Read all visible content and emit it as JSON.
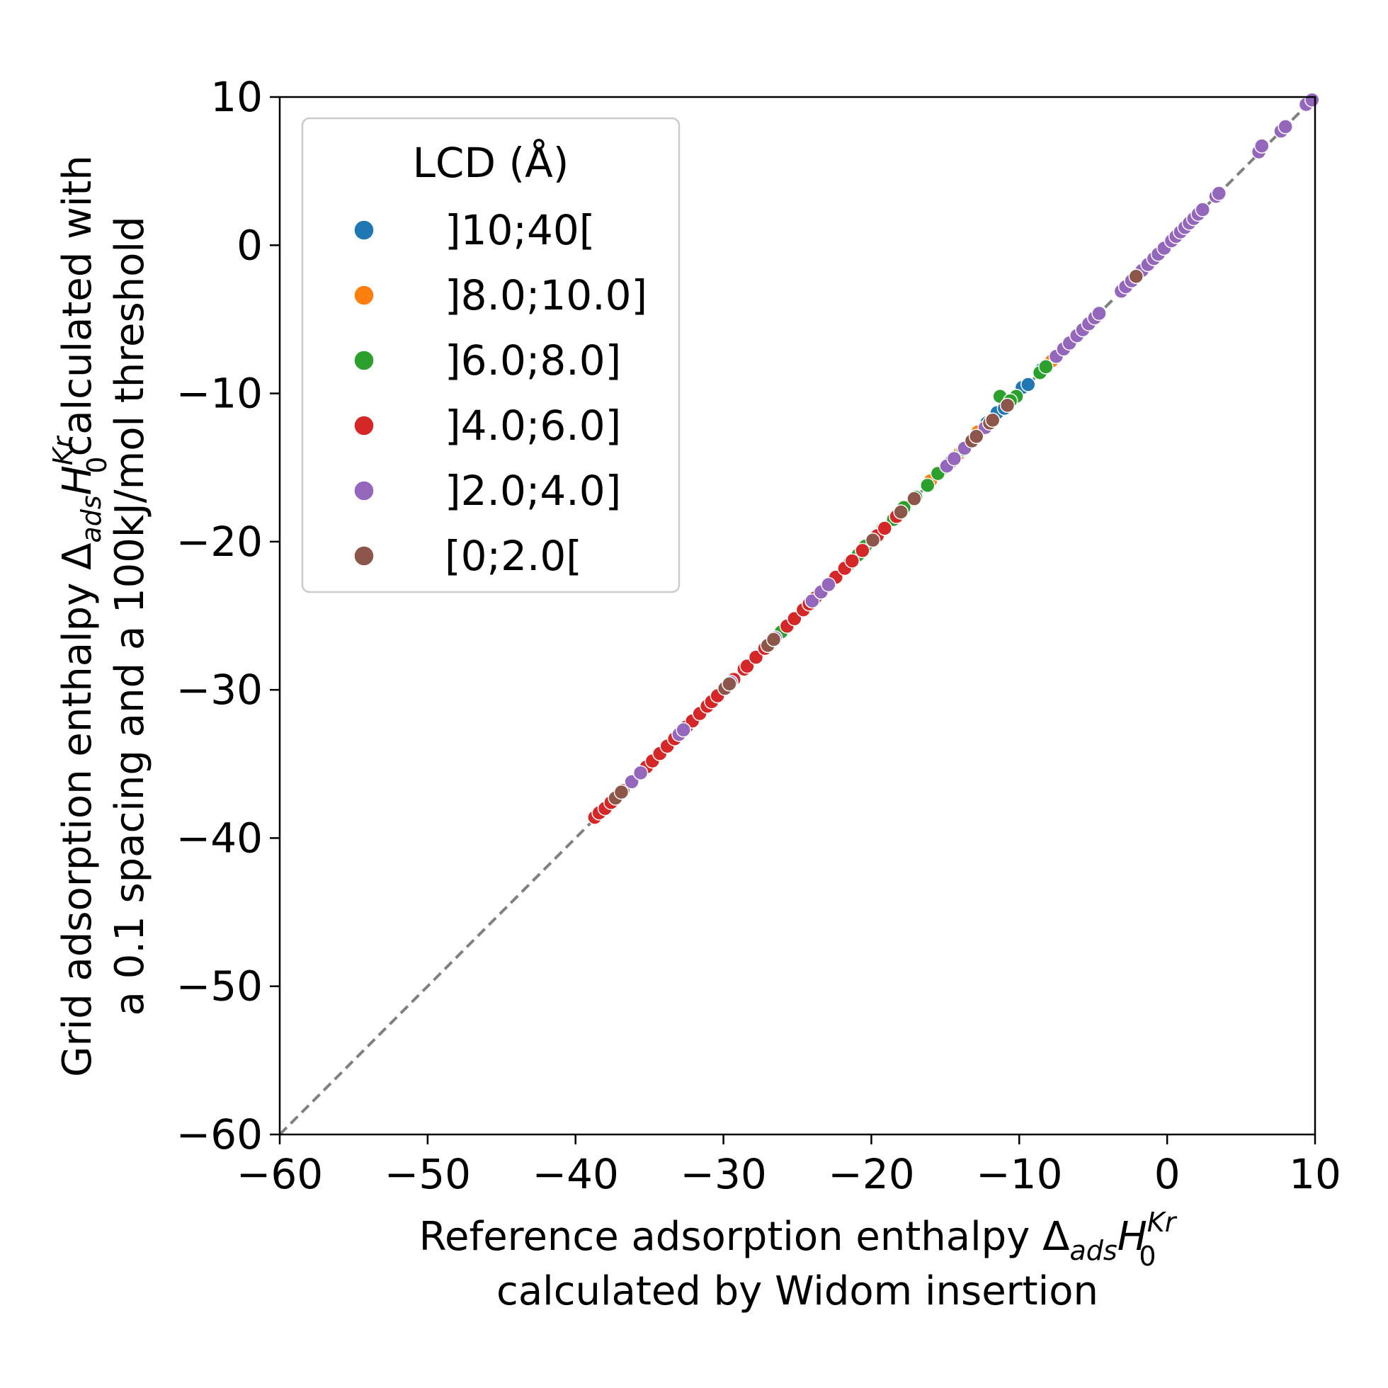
{
  "chart_data": {
    "type": "scatter",
    "xlabel": {
      "prefix": "Reference adsorption enthalpy Δ",
      "sub": "ads",
      "symbol": "H",
      "sup": "Kr",
      "sub2": "0",
      "line2": "calculated by Widom insertion"
    },
    "ylabel": {
      "prefix": "Grid adsorption enthalpy Δ",
      "sub": "ads",
      "symbol": "H",
      "sup": "Kr",
      "sub2": "0",
      "suffix": "calculated with",
      "line2": "a 0.1 spacing and a 100kJ/mol threshold"
    },
    "xlim": [
      -60,
      10
    ],
    "ylim": [
      -60,
      10
    ],
    "xticks": [
      "−60",
      "−50",
      "−40",
      "−30",
      "−20",
      "−10",
      "0",
      "10"
    ],
    "yticks": [
      "−60",
      "−50",
      "−40",
      "−30",
      "−20",
      "−10",
      "0",
      "10"
    ],
    "xtick_values": [
      -60,
      -50,
      -40,
      -30,
      -20,
      -10,
      0,
      10
    ],
    "ytick_values": [
      -60,
      -50,
      -40,
      -30,
      -20,
      -10,
      0,
      10
    ],
    "reference_line": {
      "style": "dashed",
      "color": "#808080",
      "x": [
        -60,
        10
      ],
      "y": [
        -60,
        10
      ]
    },
    "grid": false,
    "legend": {
      "title": "LCD (Å)",
      "placement": "top-left",
      "entries": [
        "]10;40[",
        "]8.0;10.0]",
        "]6.0;8.0]",
        "]4.0;6.0]",
        "]2.0;4.0]",
        "[0;2.0["
      ]
    },
    "series": [
      {
        "name": "]10;40[",
        "color": "#1f77b4",
        "points": [
          [
            -11.5,
            -11.3
          ],
          [
            -11.0,
            -11.0
          ],
          [
            -9.8,
            -9.6
          ],
          [
            -9.4,
            -9.4
          ],
          [
            -8.5,
            -8.4
          ],
          [
            -12.2,
            -12.0
          ]
        ]
      },
      {
        "name": "]8.0;10.0]",
        "color": "#ff7f0e",
        "points": [
          [
            -14.3,
            -14.3
          ],
          [
            -14.0,
            -14.0
          ],
          [
            -8.0,
            -8.0
          ],
          [
            -7.8,
            -7.8
          ],
          [
            -12.8,
            -12.6
          ],
          [
            -16.0,
            -15.9
          ]
        ]
      },
      {
        "name": "]6.0;8.0]",
        "color": "#2ca02c",
        "points": [
          [
            -11.3,
            -10.2
          ],
          [
            -10.2,
            -10.2
          ],
          [
            -10.6,
            -10.5
          ],
          [
            -8.6,
            -8.6
          ],
          [
            -8.2,
            -8.2
          ],
          [
            -15.0,
            -15.0
          ],
          [
            -15.5,
            -15.4
          ],
          [
            -16.2,
            -16.2
          ],
          [
            -17.0,
            -17.0
          ],
          [
            -17.8,
            -17.7
          ],
          [
            -18.5,
            -18.5
          ],
          [
            -19.2,
            -19.1
          ],
          [
            -19.8,
            -19.8
          ],
          [
            -20.4,
            -20.3
          ],
          [
            -20.9,
            -20.9
          ],
          [
            -21.5,
            -21.5
          ],
          [
            -25.8,
            -25.8
          ],
          [
            -26.1,
            -26.1
          ],
          [
            -13.8,
            -13.8
          ],
          [
            -14.6,
            -14.6
          ]
        ]
      },
      {
        "name": "]4.0;6.0]",
        "color": "#d62728",
        "points": [
          [
            -38.7,
            -38.6
          ],
          [
            -38.4,
            -38.3
          ],
          [
            -38.0,
            -38.0
          ],
          [
            -37.6,
            -37.6
          ],
          [
            -37.1,
            -37.1
          ],
          [
            -36.8,
            -36.8
          ],
          [
            -35.2,
            -35.2
          ],
          [
            -34.8,
            -34.8
          ],
          [
            -34.3,
            -34.3
          ],
          [
            -33.8,
            -33.8
          ],
          [
            -33.3,
            -33.3
          ],
          [
            -32.5,
            -32.5
          ],
          [
            -32.1,
            -32.1
          ],
          [
            -31.6,
            -31.6
          ],
          [
            -31.1,
            -31.1
          ],
          [
            -30.8,
            -30.8
          ],
          [
            -30.4,
            -30.4
          ],
          [
            -29.8,
            -29.8
          ],
          [
            -29.3,
            -29.3
          ],
          [
            -28.6,
            -28.6
          ],
          [
            -28.4,
            -28.4
          ],
          [
            -27.8,
            -27.8
          ],
          [
            -27.2,
            -27.2
          ],
          [
            -26.8,
            -26.8
          ],
          [
            -25.7,
            -25.7
          ],
          [
            -25.2,
            -25.2
          ],
          [
            -24.6,
            -24.6
          ],
          [
            -24.2,
            -24.2
          ],
          [
            -23.8,
            -23.8
          ],
          [
            -23.3,
            -23.3
          ],
          [
            -22.8,
            -22.8
          ],
          [
            -22.4,
            -22.4
          ],
          [
            -21.8,
            -21.8
          ],
          [
            -21.3,
            -21.3
          ],
          [
            -20.6,
            -20.6
          ],
          [
            -19.6,
            -19.6
          ],
          [
            -19.1,
            -19.1
          ],
          [
            -18.3,
            -18.3
          ]
        ]
      },
      {
        "name": "]2.0;4.0]",
        "color": "#9467bd",
        "points": [
          [
            -36.2,
            -36.2
          ],
          [
            -35.6,
            -35.6
          ],
          [
            -33.0,
            -33.0
          ],
          [
            -32.7,
            -32.7
          ],
          [
            -29.5,
            -29.5
          ],
          [
            -26.5,
            -26.5
          ],
          [
            -24.0,
            -24.0
          ],
          [
            -23.4,
            -23.4
          ],
          [
            -22.9,
            -22.9
          ],
          [
            -14.9,
            -14.9
          ],
          [
            -14.4,
            -14.4
          ],
          [
            -13.7,
            -13.7
          ],
          [
            -12.3,
            -12.3
          ],
          [
            -7.5,
            -7.5
          ],
          [
            -7.0,
            -7.0
          ],
          [
            -6.6,
            -6.6
          ],
          [
            -6.1,
            -6.1
          ],
          [
            -5.7,
            -5.7
          ],
          [
            -5.3,
            -5.3
          ],
          [
            -4.9,
            -4.9
          ],
          [
            -4.6,
            -4.6
          ],
          [
            -3.1,
            -3.1
          ],
          [
            -2.8,
            -2.8
          ],
          [
            -2.4,
            -2.4
          ],
          [
            -2.0,
            -2.0
          ],
          [
            -1.7,
            -1.7
          ],
          [
            -1.3,
            -1.3
          ],
          [
            -0.9,
            -0.9
          ],
          [
            -0.6,
            -0.6
          ],
          [
            -0.2,
            -0.2
          ],
          [
            0.3,
            0.3
          ],
          [
            0.6,
            0.6
          ],
          [
            0.9,
            0.9
          ],
          [
            1.2,
            1.2
          ],
          [
            1.5,
            1.5
          ],
          [
            1.8,
            1.8
          ],
          [
            2.1,
            2.1
          ],
          [
            2.4,
            2.4
          ],
          [
            3.3,
            3.3
          ],
          [
            3.5,
            3.5
          ],
          [
            6.2,
            6.3
          ],
          [
            6.4,
            6.7
          ],
          [
            7.7,
            7.7
          ],
          [
            8.0,
            8.0
          ],
          [
            9.4,
            9.5
          ],
          [
            9.8,
            9.8
          ]
        ]
      },
      {
        "name": "[0;2.0[",
        "color": "#8c564b",
        "points": [
          [
            -37.3,
            -37.3
          ],
          [
            -36.9,
            -36.9
          ],
          [
            -29.9,
            -29.9
          ],
          [
            -29.6,
            -29.6
          ],
          [
            -27.0,
            -27.0
          ],
          [
            -26.6,
            -26.6
          ],
          [
            -19.9,
            -19.9
          ],
          [
            -18.0,
            -18.0
          ],
          [
            -17.1,
            -17.1
          ],
          [
            -13.2,
            -13.2
          ],
          [
            -12.9,
            -12.9
          ],
          [
            -12.0,
            -12.0
          ],
          [
            -11.8,
            -11.8
          ],
          [
            -10.8,
            -10.8
          ],
          [
            -2.1,
            -2.1
          ]
        ]
      }
    ]
  }
}
